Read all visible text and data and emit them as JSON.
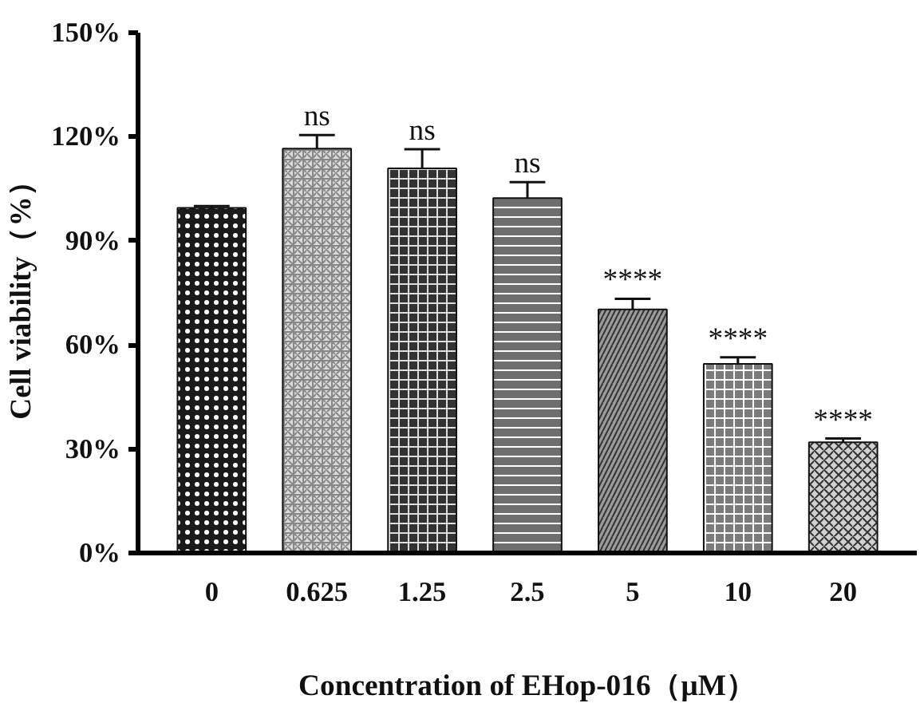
{
  "chart_data": {
    "type": "bar",
    "xlabel": "Concentration of EHop-016（μM）",
    "ylabel": "Cell viability（%）",
    "categories": [
      "0",
      "0.625",
      "1.25",
      "2.5",
      "5",
      "10",
      "20"
    ],
    "values": [
      99.5,
      116.6,
      110.9,
      102.3,
      70.2,
      54.5,
      31.9
    ],
    "errors": [
      [
        99.5,
        100.0
      ],
      [
        116.6,
        120.5
      ],
      [
        110.9,
        116.4
      ],
      [
        102.3,
        106.9
      ],
      [
        70.2,
        73.3
      ],
      [
        54.5,
        56.4
      ],
      [
        31.9,
        33.0
      ]
    ],
    "colors": [
      "#1a1a1a",
      "#d9d9d9",
      "#333333",
      "#6e6e6e",
      "#9a9a9a",
      "#7a7a7a",
      "#d0d0d0"
    ],
    "ylim": [
      0,
      150
    ],
    "yticks": [
      {
        "value": 0,
        "label": "0%"
      },
      {
        "value": 30,
        "label": "30%"
      },
      {
        "value": 60,
        "label": "60%"
      },
      {
        "value": 90,
        "label": "90%"
      },
      {
        "value": 120,
        "label": "120%"
      },
      {
        "value": 150,
        "label": "150%"
      }
    ],
    "annotations": [
      {
        "text": "ns",
        "x": "0.625",
        "y": 120.5
      },
      {
        "text": "ns",
        "x": "1.25",
        "y": 116.4
      },
      {
        "text": "ns",
        "x": "2.5",
        "y": 106.9
      },
      {
        "text": "****",
        "x": "5",
        "y": 73.3
      },
      {
        "text": "****",
        "x": "10",
        "y": 56.4
      },
      {
        "text": "****",
        "x": "20",
        "y": 33.0
      }
    ],
    "grid": false
  }
}
